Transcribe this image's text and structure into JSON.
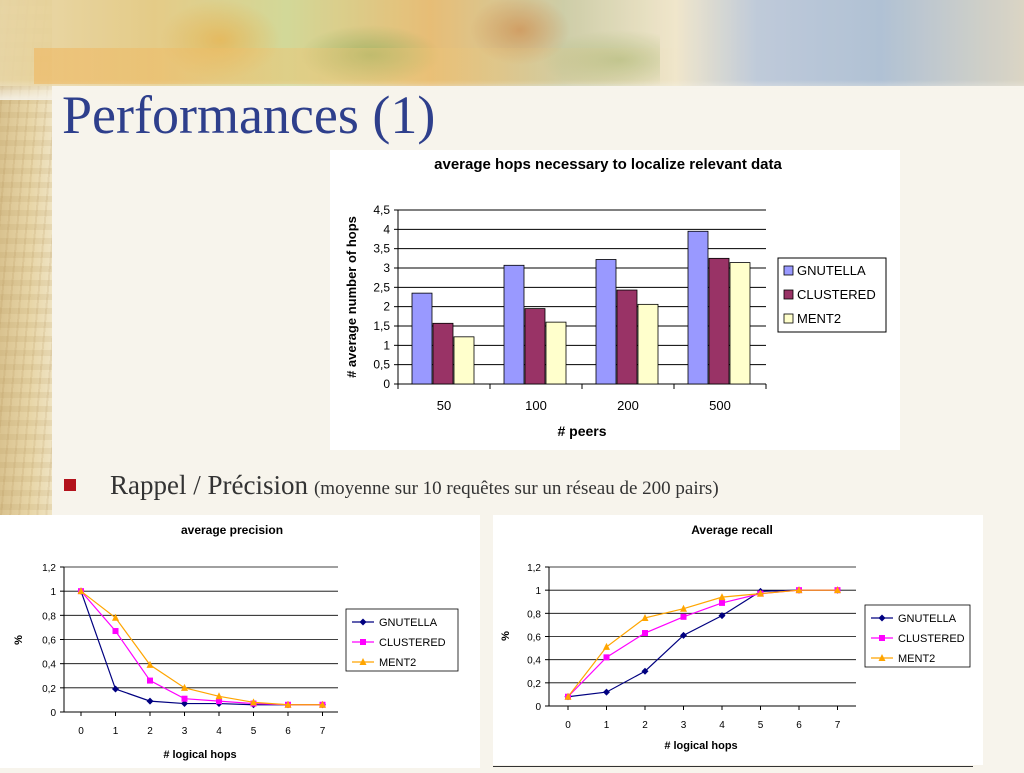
{
  "slide": {
    "title": "Performances (1)",
    "bullet": {
      "main": "Rappel / Précision",
      "sub": "(moyenne sur 10 requêtes sur un réseau de 200 pairs)"
    }
  },
  "colors": {
    "title": "#2e3f8c",
    "bullet": "#b3121b",
    "bar_gnutella": "#9999ff",
    "bar_clustered": "#993366",
    "bar_ment2": "#ffffcc",
    "line_gnutella": "#000080",
    "line_clustered": "#ff00ff",
    "line_ment2": "#ffa500"
  },
  "chart_data": [
    {
      "type": "bar",
      "title": "average hops necessary to localize relevant data",
      "xlabel": "# peers",
      "ylabel": "# average number of hops",
      "categories": [
        "50",
        "100",
        "200",
        "500"
      ],
      "ylim": [
        0,
        4.5
      ],
      "yticks": [
        "0",
        "0,5",
        "1",
        "1,5",
        "2",
        "2,5",
        "3",
        "3,5",
        "4",
        "4,5"
      ],
      "grid": true,
      "legend_position": "right",
      "series": [
        {
          "name": "GNUTELLA",
          "values": [
            2.35,
            3.07,
            3.22,
            3.95
          ]
        },
        {
          "name": "CLUSTERED",
          "values": [
            1.57,
            1.95,
            2.43,
            3.25
          ]
        },
        {
          "name": "MENT2",
          "values": [
            1.22,
            1.6,
            2.06,
            3.14
          ]
        }
      ]
    },
    {
      "type": "line",
      "title": "average precision",
      "xlabel": "# logical hops",
      "ylabel": "%",
      "x": [
        0,
        1,
        2,
        3,
        4,
        5,
        6,
        7
      ],
      "ylim": [
        0,
        1.2
      ],
      "yticks": [
        "0",
        "0,2",
        "0,4",
        "0,6",
        "0,8",
        "1",
        "1,2"
      ],
      "grid": true,
      "legend_position": "right",
      "series": [
        {
          "name": "GNUTELLA",
          "values": [
            1.0,
            0.19,
            0.09,
            0.07,
            0.07,
            0.06,
            0.06,
            0.06
          ]
        },
        {
          "name": "CLUSTERED",
          "values": [
            1.0,
            0.67,
            0.26,
            0.11,
            0.09,
            0.07,
            0.06,
            0.06
          ]
        },
        {
          "name": "MENT2",
          "values": [
            1.0,
            0.78,
            0.39,
            0.2,
            0.13,
            0.08,
            0.06,
            0.06
          ]
        }
      ]
    },
    {
      "type": "line",
      "title": "Average recall",
      "xlabel": "# logical hops",
      "ylabel": "%",
      "x": [
        0,
        1,
        2,
        3,
        4,
        5,
        6,
        7
      ],
      "ylim": [
        0,
        1.2
      ],
      "yticks": [
        "0",
        "0,2",
        "0,4",
        "0,6",
        "0,8",
        "1",
        "1,2"
      ],
      "grid": true,
      "legend_position": "right",
      "series": [
        {
          "name": "GNUTELLA",
          "values": [
            0.08,
            0.12,
            0.3,
            0.61,
            0.78,
            0.99,
            1.0,
            1.0
          ]
        },
        {
          "name": "CLUSTERED",
          "values": [
            0.08,
            0.42,
            0.63,
            0.77,
            0.89,
            0.97,
            1.0,
            1.0
          ]
        },
        {
          "name": "MENT2",
          "values": [
            0.08,
            0.51,
            0.76,
            0.84,
            0.94,
            0.97,
            1.0,
            1.0
          ]
        }
      ]
    }
  ]
}
